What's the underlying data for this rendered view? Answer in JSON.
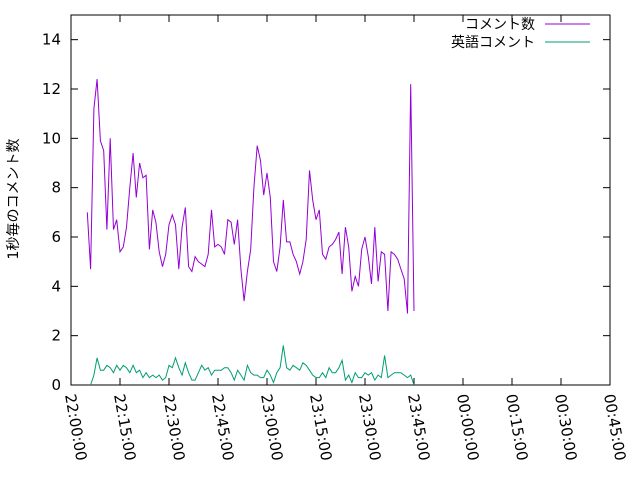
{
  "chart_data": {
    "type": "line",
    "title": "",
    "xlabel": "",
    "ylabel": "1秒毎のコメント数",
    "ylim": [
      0,
      15
    ],
    "yticks": [
      0,
      2,
      4,
      6,
      8,
      10,
      12,
      14
    ],
    "xlim_minutes": [
      0,
      165
    ],
    "xticks": [
      {
        "t": 0,
        "label": "22:00:00"
      },
      {
        "t": 15,
        "label": "22:15:00"
      },
      {
        "t": 30,
        "label": "22:30:00"
      },
      {
        "t": 45,
        "label": "22:45:00"
      },
      {
        "t": 60,
        "label": "23:00:00"
      },
      {
        "t": 75,
        "label": "23:15:00"
      },
      {
        "t": 90,
        "label": "23:30:00"
      },
      {
        "t": 105,
        "label": "23:45:00"
      },
      {
        "t": 120,
        "label": "00:00:00"
      },
      {
        "t": 135,
        "label": "00:15:00"
      },
      {
        "t": 150,
        "label": "00:30:00"
      },
      {
        "t": 165,
        "label": "00:45:00"
      }
    ],
    "legend_position": "top-right",
    "grid": false,
    "series": [
      {
        "name": "コメント数",
        "color": "#9400d3",
        "points": [
          [
            5,
            7.0
          ],
          [
            6,
            4.7
          ],
          [
            7,
            11.2
          ],
          [
            8,
            12.4
          ],
          [
            9,
            9.9
          ],
          [
            10,
            9.5
          ],
          [
            11,
            6.3
          ],
          [
            12,
            10.0
          ],
          [
            13,
            6.3
          ],
          [
            14,
            6.7
          ],
          [
            15,
            5.4
          ],
          [
            16,
            5.6
          ],
          [
            17,
            6.4
          ],
          [
            18,
            8.0
          ],
          [
            19,
            9.4
          ],
          [
            20,
            7.6
          ],
          [
            21,
            9.0
          ],
          [
            22,
            8.4
          ],
          [
            23,
            8.5
          ],
          [
            24,
            5.5
          ],
          [
            25,
            7.1
          ],
          [
            26,
            6.6
          ],
          [
            27,
            5.4
          ],
          [
            28,
            4.8
          ],
          [
            29,
            5.3
          ],
          [
            30,
            6.5
          ],
          [
            31,
            6.9
          ],
          [
            32,
            6.5
          ],
          [
            33,
            4.7
          ],
          [
            34,
            6.4
          ],
          [
            35,
            7.2
          ],
          [
            36,
            4.8
          ],
          [
            37,
            4.6
          ],
          [
            38,
            5.2
          ],
          [
            39,
            5.0
          ],
          [
            40,
            4.9
          ],
          [
            41,
            4.8
          ],
          [
            42,
            5.3
          ],
          [
            43,
            7.1
          ],
          [
            44,
            5.6
          ],
          [
            45,
            5.7
          ],
          [
            46,
            5.6
          ],
          [
            47,
            5.3
          ],
          [
            48,
            6.7
          ],
          [
            49,
            6.6
          ],
          [
            50,
            5.7
          ],
          [
            51,
            6.7
          ],
          [
            52,
            4.7
          ],
          [
            53,
            3.4
          ],
          [
            54,
            4.6
          ],
          [
            55,
            5.5
          ],
          [
            56,
            8.0
          ],
          [
            57,
            9.7
          ],
          [
            58,
            9.1
          ],
          [
            59,
            7.7
          ],
          [
            60,
            8.6
          ],
          [
            61,
            7.6
          ],
          [
            62,
            5.0
          ],
          [
            63,
            4.6
          ],
          [
            64,
            5.6
          ],
          [
            65,
            7.5
          ],
          [
            66,
            5.8
          ],
          [
            67,
            5.8
          ],
          [
            68,
            5.3
          ],
          [
            69,
            5.0
          ],
          [
            70,
            4.5
          ],
          [
            71,
            5.0
          ],
          [
            72,
            5.9
          ],
          [
            73,
            8.7
          ],
          [
            74,
            7.5
          ],
          [
            75,
            6.7
          ],
          [
            76,
            7.1
          ],
          [
            77,
            5.3
          ],
          [
            78,
            5.1
          ],
          [
            79,
            5.6
          ],
          [
            80,
            5.7
          ],
          [
            81,
            5.9
          ],
          [
            82,
            6.2
          ],
          [
            83,
            4.5
          ],
          [
            84,
            6.4
          ],
          [
            85,
            5.6
          ],
          [
            86,
            3.8
          ],
          [
            87,
            4.4
          ],
          [
            88,
            4.0
          ],
          [
            89,
            5.5
          ],
          [
            90,
            6.0
          ],
          [
            91,
            5.2
          ],
          [
            92,
            4.1
          ],
          [
            93,
            6.4
          ],
          [
            94,
            4.2
          ],
          [
            95,
            5.4
          ],
          [
            96,
            5.3
          ],
          [
            97,
            3.0
          ],
          [
            98,
            5.4
          ],
          [
            99,
            5.3
          ],
          [
            100,
            5.1
          ],
          [
            101,
            4.7
          ],
          [
            102,
            4.3
          ],
          [
            103,
            2.9
          ],
          [
            104,
            12.2
          ],
          [
            105,
            3.0
          ]
        ]
      },
      {
        "name": "英語コメント",
        "color": "#009e73",
        "points": [
          [
            6,
            0.0
          ],
          [
            7,
            0.4
          ],
          [
            8,
            1.1
          ],
          [
            9,
            0.6
          ],
          [
            10,
            0.6
          ],
          [
            11,
            0.8
          ],
          [
            12,
            0.7
          ],
          [
            13,
            0.5
          ],
          [
            14,
            0.8
          ],
          [
            15,
            0.6
          ],
          [
            16,
            0.8
          ],
          [
            17,
            0.7
          ],
          [
            18,
            0.5
          ],
          [
            19,
            0.8
          ],
          [
            20,
            0.5
          ],
          [
            21,
            0.6
          ],
          [
            22,
            0.3
          ],
          [
            23,
            0.5
          ],
          [
            24,
            0.3
          ],
          [
            25,
            0.4
          ],
          [
            26,
            0.3
          ],
          [
            27,
            0.4
          ],
          [
            28,
            0.2
          ],
          [
            29,
            0.3
          ],
          [
            30,
            0.8
          ],
          [
            31,
            0.7
          ],
          [
            32,
            1.1
          ],
          [
            33,
            0.7
          ],
          [
            34,
            0.4
          ],
          [
            35,
            0.9
          ],
          [
            36,
            0.5
          ],
          [
            37,
            0.2
          ],
          [
            38,
            0.2
          ],
          [
            39,
            0.5
          ],
          [
            40,
            0.8
          ],
          [
            41,
            0.6
          ],
          [
            42,
            0.7
          ],
          [
            43,
            0.4
          ],
          [
            44,
            0.6
          ],
          [
            45,
            0.6
          ],
          [
            46,
            0.6
          ],
          [
            47,
            0.7
          ],
          [
            48,
            0.7
          ],
          [
            49,
            0.5
          ],
          [
            50,
            0.2
          ],
          [
            51,
            0.6
          ],
          [
            52,
            0.4
          ],
          [
            53,
            0.2
          ],
          [
            54,
            0.8
          ],
          [
            55,
            0.5
          ],
          [
            56,
            0.4
          ],
          [
            57,
            0.4
          ],
          [
            58,
            0.3
          ],
          [
            59,
            0.3
          ],
          [
            60,
            0.6
          ],
          [
            61,
            0.4
          ],
          [
            62,
            0.1
          ],
          [
            63,
            0.5
          ],
          [
            64,
            0.7
          ],
          [
            65,
            1.6
          ],
          [
            66,
            0.7
          ],
          [
            67,
            0.6
          ],
          [
            68,
            0.8
          ],
          [
            69,
            0.7
          ],
          [
            70,
            0.6
          ],
          [
            71,
            0.9
          ],
          [
            72,
            0.8
          ],
          [
            73,
            0.6
          ],
          [
            74,
            0.4
          ],
          [
            75,
            0.3
          ],
          [
            76,
            0.3
          ],
          [
            77,
            0.5
          ],
          [
            78,
            0.3
          ],
          [
            79,
            0.7
          ],
          [
            80,
            0.5
          ],
          [
            81,
            0.5
          ],
          [
            82,
            0.7
          ],
          [
            83,
            1.0
          ],
          [
            84,
            0.2
          ],
          [
            85,
            0.4
          ],
          [
            86,
            0.1
          ],
          [
            87,
            0.5
          ],
          [
            88,
            0.3
          ],
          [
            89,
            0.3
          ],
          [
            90,
            0.5
          ],
          [
            91,
            0.4
          ],
          [
            92,
            0.5
          ],
          [
            93,
            0.2
          ],
          [
            94,
            0.4
          ],
          [
            95,
            0.3
          ],
          [
            96,
            1.2
          ],
          [
            97,
            0.3
          ],
          [
            98,
            0.4
          ],
          [
            99,
            0.5
          ],
          [
            100,
            0.5
          ],
          [
            101,
            0.5
          ],
          [
            102,
            0.4
          ],
          [
            103,
            0.3
          ],
          [
            104,
            0.4
          ],
          [
            105,
            0.0
          ]
        ]
      }
    ]
  }
}
